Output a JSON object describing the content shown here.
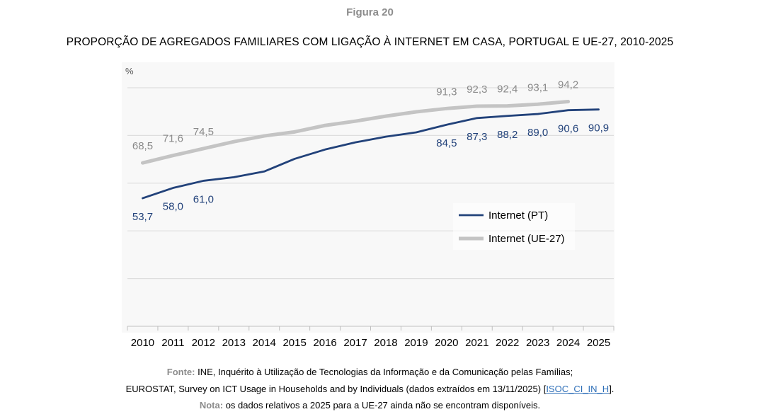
{
  "figure_label": "Figura 20",
  "chart_data": {
    "type": "line",
    "title": "PROPORÇÃO DE AGREGADOS FAMILIARES COM LIGAÇÃO À INTERNET EM CASA, PORTUGAL E UE-27, 2010-2025",
    "ylabel": "%",
    "xlabel": "",
    "ylim": [
      0,
      100
    ],
    "ygrid_step": 20,
    "grid": true,
    "legend_position": "center-right",
    "x": [
      "2010",
      "2011",
      "2012",
      "2013",
      "2014",
      "2015",
      "2016",
      "2017",
      "2018",
      "2019",
      "2020",
      "2021",
      "2022",
      "2023",
      "2024",
      "2025"
    ],
    "series": [
      {
        "name": "Internet (PT)",
        "color": "#22427a",
        "values": [
          53.7,
          58.0,
          61.0,
          62.5,
          64.9,
          70.2,
          74.1,
          77.1,
          79.5,
          81.3,
          84.5,
          87.3,
          88.2,
          89.0,
          90.6,
          90.9
        ],
        "labels": [
          "53,7",
          "58,0",
          "61,0",
          null,
          null,
          null,
          null,
          null,
          null,
          null,
          "84,5",
          "87,3",
          "88,2",
          "89,0",
          "90,6",
          "90,9"
        ]
      },
      {
        "name": "Internet (UE-27)",
        "color": "#c4c4c4",
        "values": [
          68.5,
          71.6,
          74.5,
          77.4,
          79.8,
          81.5,
          84.2,
          86.0,
          88.1,
          89.9,
          91.3,
          92.3,
          92.4,
          93.1,
          94.2,
          null
        ],
        "labels": [
          "68,5",
          "71,6",
          "74,5",
          null,
          null,
          null,
          null,
          null,
          null,
          null,
          "91,3",
          "92,3",
          "92,4",
          "93,1",
          "94,2",
          null
        ]
      }
    ]
  },
  "footer": {
    "source_label": "Fonte:",
    "source_line1": "INE, Inquérito à Utilização de Tecnologias da Informação e da Comunicação pelas Famílias;",
    "source_line2": "EUROSTAT, Survey on ICT Usage in Households and by Individuals (dados extraídos em 13/11/2025) [",
    "source_link": "ISOC_CI_IN_H",
    "source_line2_end": "].",
    "note_label": "Nota:",
    "note_text": "os dados relativos a 2025 para a UE-27 ainda não se encontram disponíveis."
  }
}
